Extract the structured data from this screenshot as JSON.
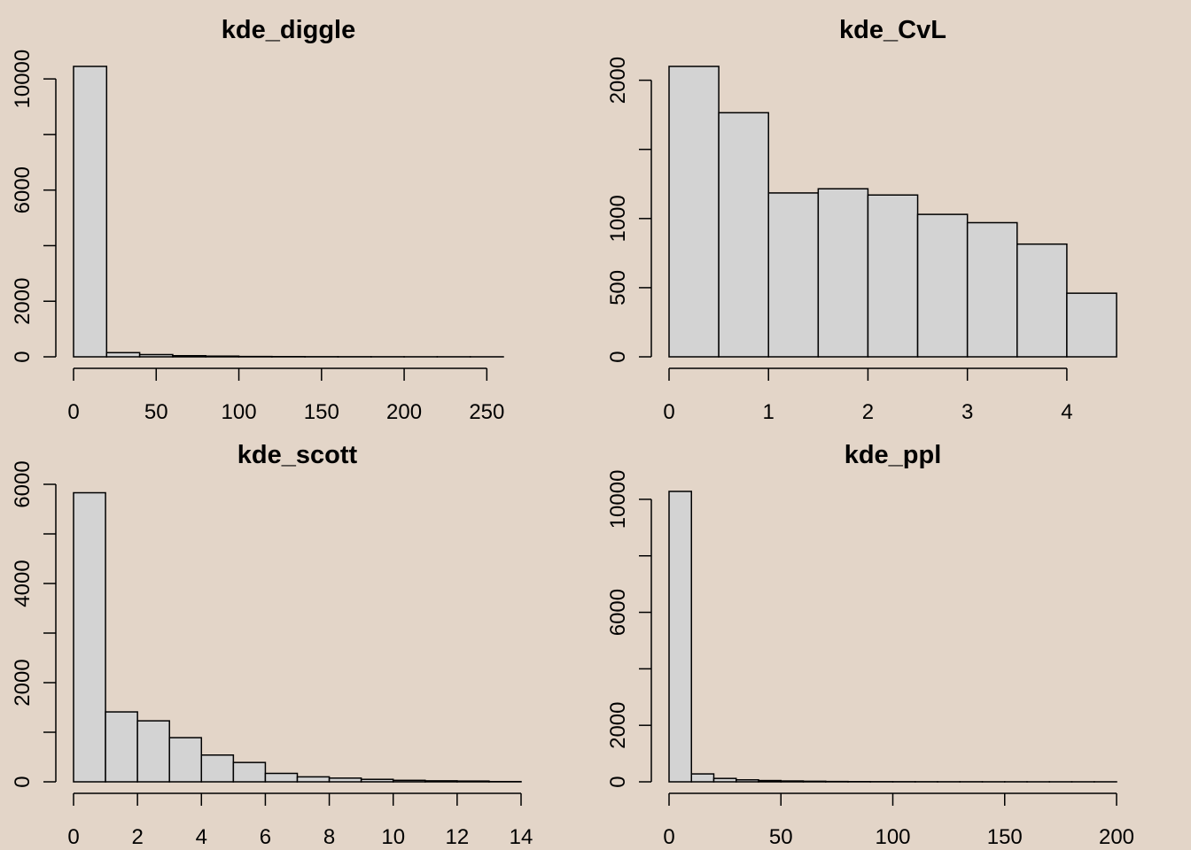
{
  "colors": {
    "background": "#e3d5c8",
    "bar_fill": "#d3d3d3",
    "bar_stroke": "#000000"
  },
  "chart_data": [
    {
      "type": "bar",
      "title": "kde_diggle",
      "xlabel": "",
      "ylabel": "",
      "bin_edges": [
        0,
        20,
        40,
        60,
        80,
        100,
        120,
        140,
        160,
        180,
        200,
        220,
        240,
        260
      ],
      "values": [
        10450,
        150,
        80,
        40,
        25,
        12,
        8,
        5,
        4,
        3,
        2,
        2,
        1
      ],
      "xlim": [
        0,
        260
      ],
      "ylim": [
        0,
        10450
      ],
      "x_ticks": [
        0,
        50,
        100,
        150,
        200,
        250
      ],
      "x_tick_labels": [
        "0",
        "50",
        "100",
        "150",
        "200",
        "250"
      ],
      "y_ticks": [
        0,
        2000,
        4000,
        6000,
        8000,
        10000
      ],
      "y_tick_labels": [
        "0",
        "2000",
        "",
        "6000",
        "",
        "10000"
      ],
      "grid": false
    },
    {
      "type": "bar",
      "title": "kde_CvL",
      "xlabel": "",
      "ylabel": "",
      "bin_edges": [
        0,
        0.5,
        1,
        1.5,
        2,
        2.5,
        3,
        3.5,
        4,
        4.5
      ],
      "values": [
        2100,
        1765,
        1185,
        1215,
        1170,
        1030,
        970,
        815,
        460
      ],
      "xlim": [
        0,
        4.5
      ],
      "ylim": [
        0,
        2100
      ],
      "x_ticks": [
        0,
        1,
        2,
        3,
        4
      ],
      "x_tick_labels": [
        "0",
        "1",
        "2",
        "3",
        "4"
      ],
      "y_ticks": [
        0,
        500,
        1000,
        1500,
        2000
      ],
      "y_tick_labels": [
        "0",
        "500",
        "1000",
        "",
        "2000"
      ],
      "grid": false
    },
    {
      "type": "bar",
      "title": "kde_scott",
      "xlabel": "",
      "ylabel": "",
      "bin_edges": [
        0,
        1,
        2,
        3,
        4,
        5,
        6,
        7,
        8,
        9,
        10,
        11,
        12,
        13,
        14
      ],
      "values": [
        5830,
        1410,
        1230,
        890,
        540,
        390,
        170,
        100,
        75,
        50,
        30,
        20,
        15,
        5
      ],
      "xlim": [
        0,
        14
      ],
      "ylim": [
        0,
        6000
      ],
      "x_ticks": [
        0,
        2,
        4,
        6,
        8,
        10,
        12,
        14
      ],
      "x_tick_labels": [
        "0",
        "2",
        "4",
        "6",
        "8",
        "10",
        "12",
        "14"
      ],
      "y_ticks": [
        0,
        1000,
        2000,
        3000,
        4000,
        5000,
        6000
      ],
      "y_tick_labels": [
        "0",
        "",
        "2000",
        "",
        "4000",
        "",
        "6000"
      ],
      "grid": false
    },
    {
      "type": "bar",
      "title": "kde_ppl",
      "xlabel": "",
      "ylabel": "",
      "bin_edges": [
        0,
        10,
        20,
        30,
        40,
        50,
        60,
        70,
        80,
        90,
        100,
        110,
        120,
        130,
        140,
        150,
        160,
        170,
        180,
        190,
        200
      ],
      "values": [
        10280,
        280,
        120,
        70,
        45,
        30,
        20,
        12,
        8,
        6,
        5,
        4,
        3,
        3,
        2,
        2,
        1,
        1,
        1,
        1
      ],
      "xlim": [
        0,
        200
      ],
      "ylim": [
        0,
        10280
      ],
      "x_ticks": [
        0,
        50,
        100,
        150,
        200
      ],
      "x_tick_labels": [
        "0",
        "50",
        "100",
        "150",
        "200"
      ],
      "y_ticks": [
        0,
        2000,
        4000,
        6000,
        8000,
        10000
      ],
      "y_tick_labels": [
        "0",
        "2000",
        "",
        "6000",
        "",
        "10000"
      ],
      "grid": false
    }
  ]
}
